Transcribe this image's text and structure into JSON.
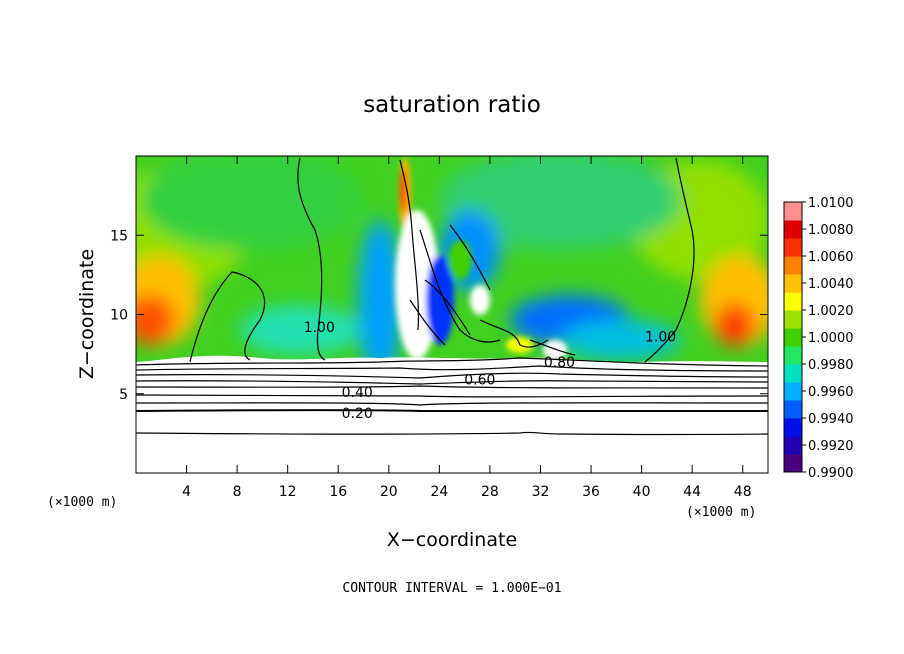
{
  "chart_data": {
    "type": "heatmap",
    "title": "saturation ratio",
    "xlabel": "X−coordinate",
    "ylabel": "Z−coordinate",
    "x_unit_left": "(×1000 m)",
    "x_unit_right": "(×1000 m)",
    "xlim": [
      0,
      50
    ],
    "ylim": [
      0,
      20
    ],
    "x_ticks": [
      4,
      8,
      12,
      16,
      20,
      24,
      28,
      32,
      36,
      40,
      44,
      48
    ],
    "y_ticks": [
      5,
      10,
      15
    ],
    "colorbar": {
      "min": 0.99,
      "max": 1.01,
      "labels": [
        "1.0100",
        "1.0080",
        "1.0060",
        "1.0040",
        "1.0020",
        "1.0000",
        "0.9980",
        "0.9960",
        "0.9940",
        "0.9920",
        "0.9900"
      ],
      "colors": [
        "#4b0082",
        "#2000b0",
        "#0010e8",
        "#0060ff",
        "#00b0ff",
        "#00e0c0",
        "#20e860",
        "#40d000",
        "#a0e000",
        "#ffff00",
        "#ffc000",
        "#ff8000",
        "#ff3000",
        "#e00000",
        "#ff9090"
      ]
    },
    "contour_labels": [
      {
        "text": "1.00",
        "x": 14.5,
        "z": 9.2
      },
      {
        "text": "1.00",
        "x": 41.5,
        "z": 8.6
      },
      {
        "text": "0.80",
        "x": 33.5,
        "z": 7.0
      },
      {
        "text": "0.60",
        "x": 27.2,
        "z": 5.9
      },
      {
        "text": "0.40",
        "x": 17.5,
        "z": 5.1
      },
      {
        "text": "0.20",
        "x": 17.5,
        "z": 3.8
      }
    ],
    "footer": "CONTOUR INTERVAL = 1.000E−01"
  }
}
